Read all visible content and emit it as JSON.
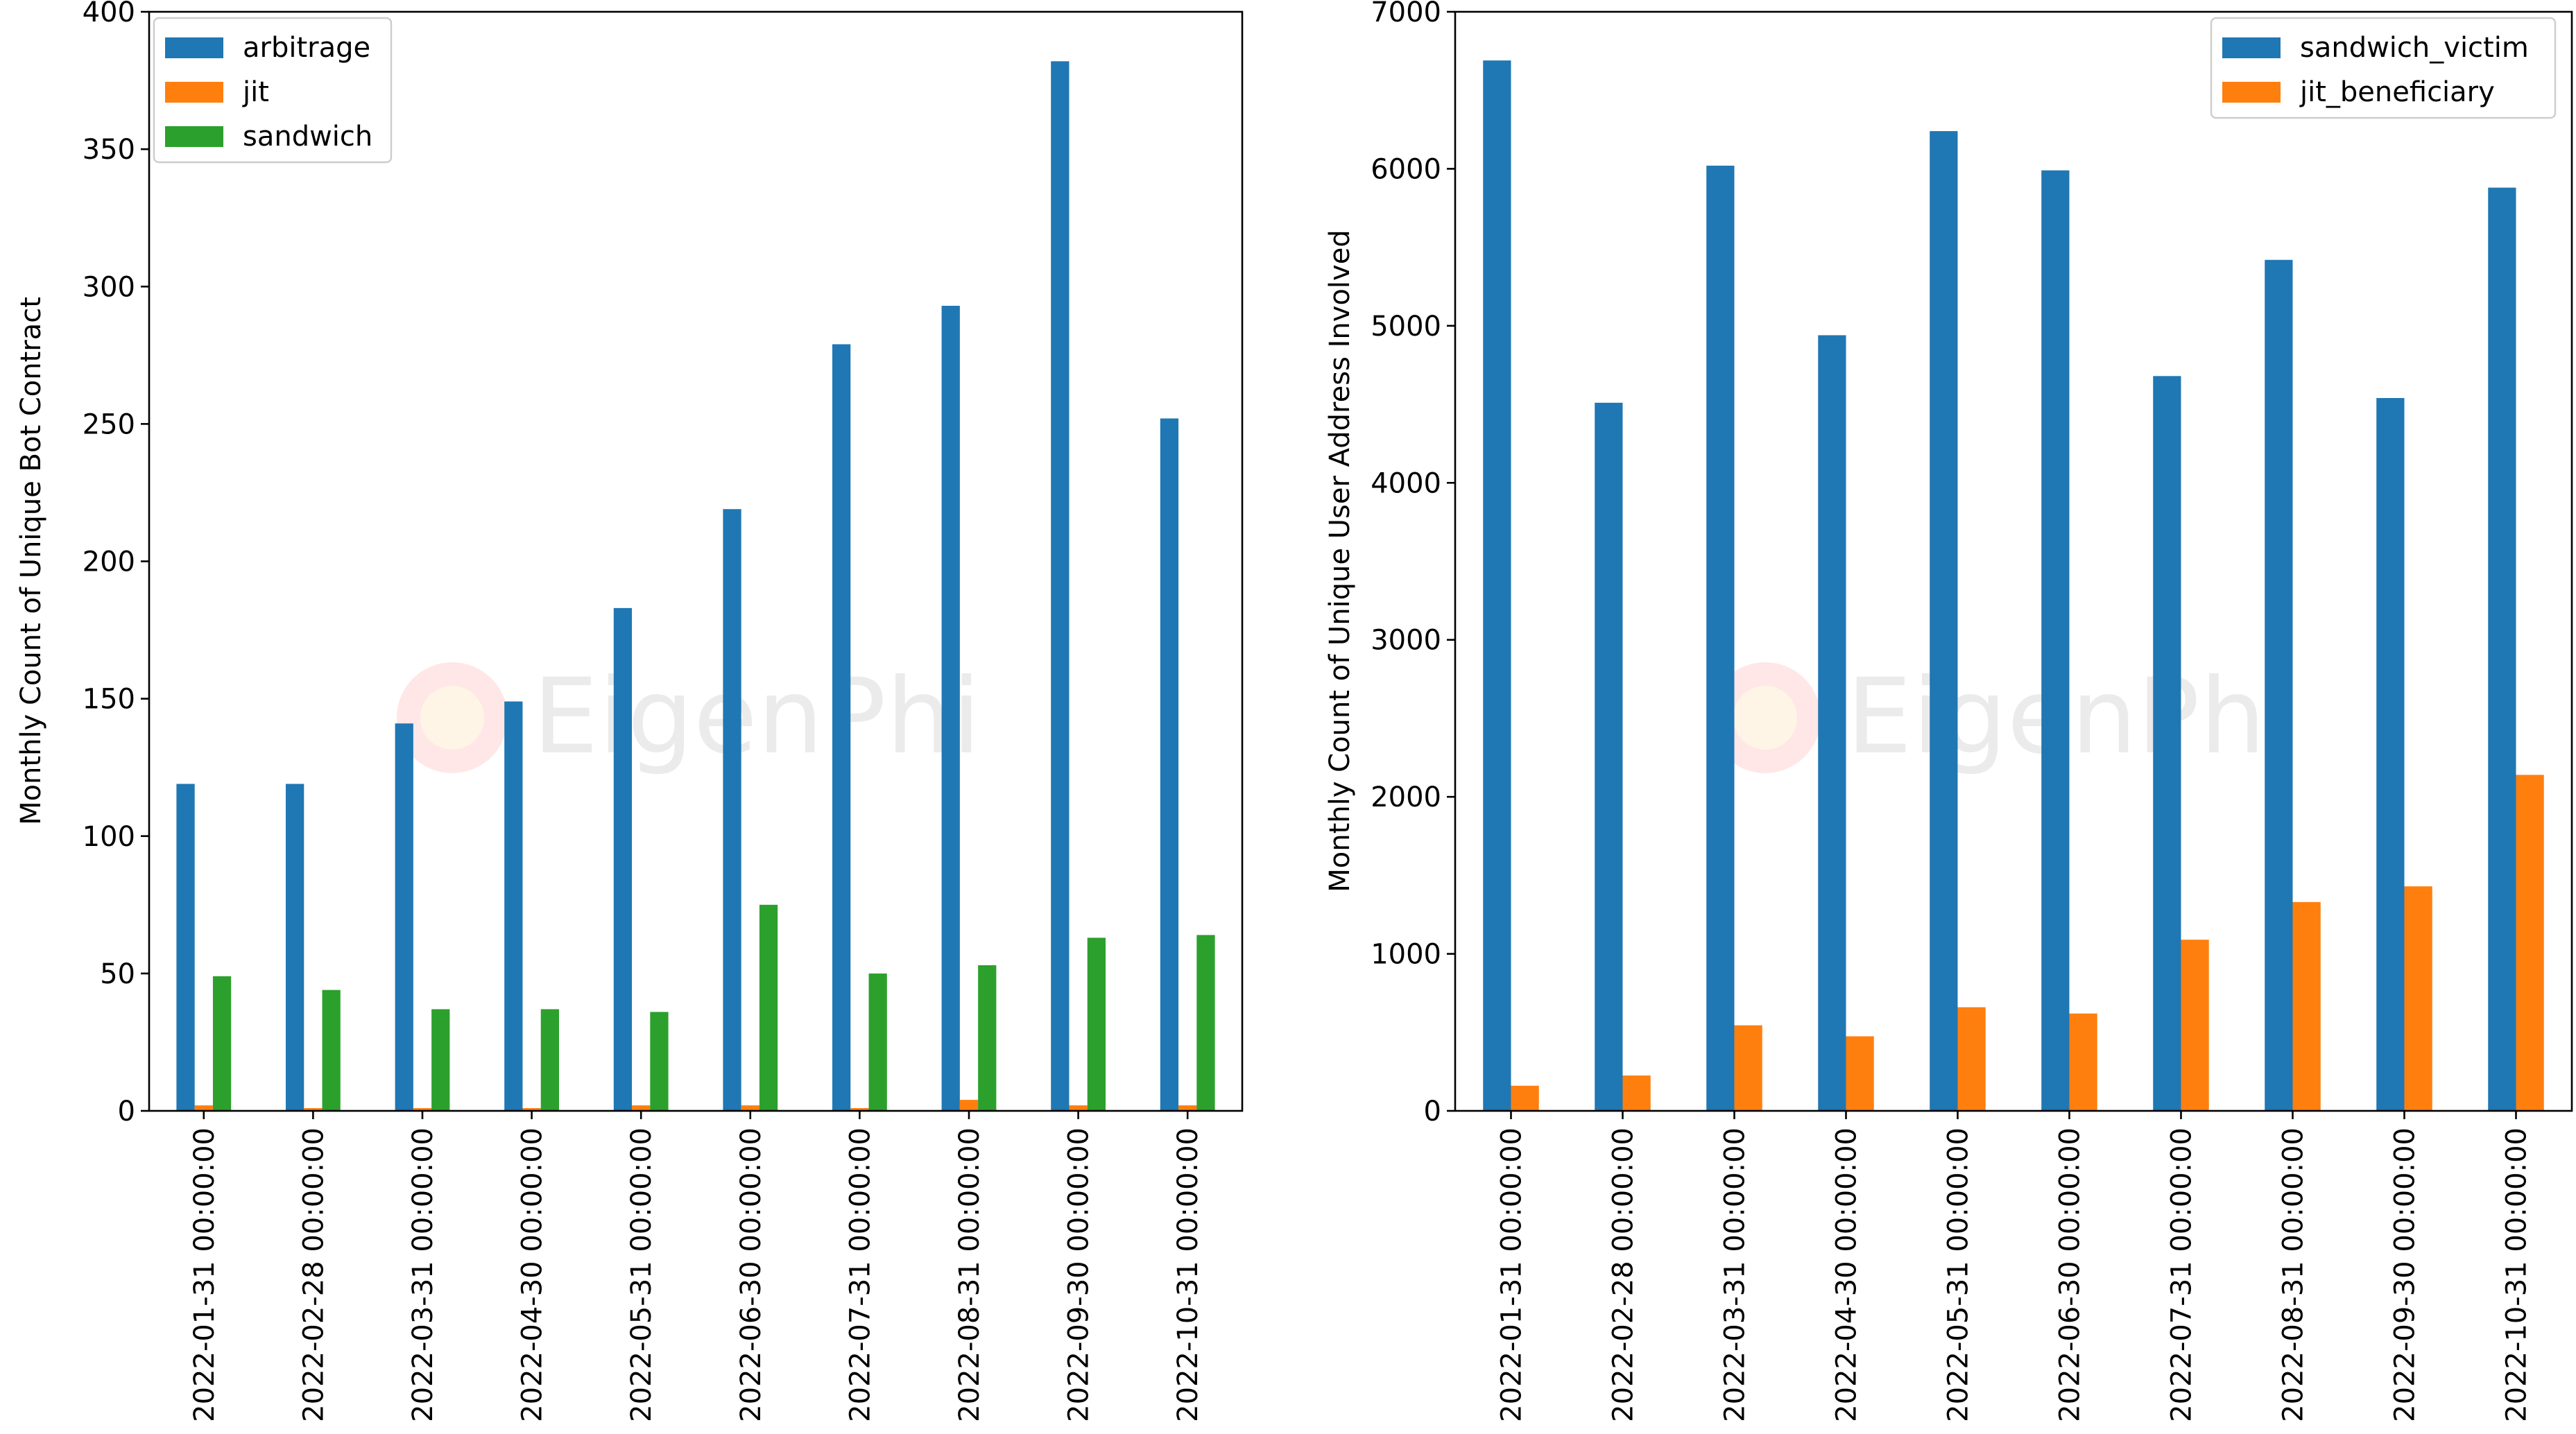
{
  "watermark": {
    "text": "EigenPhi"
  },
  "chart_data": [
    {
      "type": "bar",
      "categories": [
        "2022-01-31 00:00:00",
        "2022-02-28 00:00:00",
        "2022-03-31 00:00:00",
        "2022-04-30 00:00:00",
        "2022-05-31 00:00:00",
        "2022-06-30 00:00:00",
        "2022-07-31 00:00:00",
        "2022-08-31 00:00:00",
        "2022-09-30 00:00:00",
        "2022-10-31 00:00:00"
      ],
      "series": [
        {
          "name": "arbitrage",
          "color": "#1f77b4",
          "values": [
            119,
            119,
            141,
            149,
            183,
            219,
            279,
            293,
            382,
            252
          ]
        },
        {
          "name": "jit",
          "color": "#ff7f0e",
          "values": [
            2,
            1,
            1,
            1,
            2,
            2,
            1,
            4,
            2,
            2
          ]
        },
        {
          "name": "sandwich",
          "color": "#2ca02c",
          "values": [
            49,
            44,
            37,
            37,
            36,
            75,
            50,
            53,
            63,
            64
          ]
        }
      ],
      "title": "",
      "xlabel": "",
      "ylabel": "Monthly Count of Unique Bot Contract",
      "ylim": [
        0,
        400
      ],
      "yticks": [
        0,
        50,
        100,
        150,
        200,
        250,
        300,
        350,
        400
      ],
      "legend": "top-left",
      "grid": false
    },
    {
      "type": "bar",
      "categories": [
        "2022-01-31 00:00:00",
        "2022-02-28 00:00:00",
        "2022-03-31 00:00:00",
        "2022-04-30 00:00:00",
        "2022-05-31 00:00:00",
        "2022-06-30 00:00:00",
        "2022-07-31 00:00:00",
        "2022-08-31 00:00:00",
        "2022-09-30 00:00:00",
        "2022-10-31 00:00:00"
      ],
      "series": [
        {
          "name": "sandwich_victim",
          "color": "#1f77b4",
          "values": [
            6690,
            4510,
            6020,
            4940,
            6240,
            5990,
            4680,
            5420,
            4540,
            5880
          ]
        },
        {
          "name": "jit_beneficiary",
          "color": "#ff7f0e",
          "values": [
            160,
            225,
            545,
            475,
            660,
            620,
            1090,
            1330,
            1430,
            2140
          ]
        }
      ],
      "title": "",
      "xlabel": "",
      "ylabel": "Monthly Count of Unique User Address Involved",
      "ylim": [
        0,
        7000
      ],
      "yticks": [
        0,
        1000,
        2000,
        3000,
        4000,
        5000,
        6000,
        7000
      ],
      "legend": "top-right",
      "grid": false
    }
  ]
}
